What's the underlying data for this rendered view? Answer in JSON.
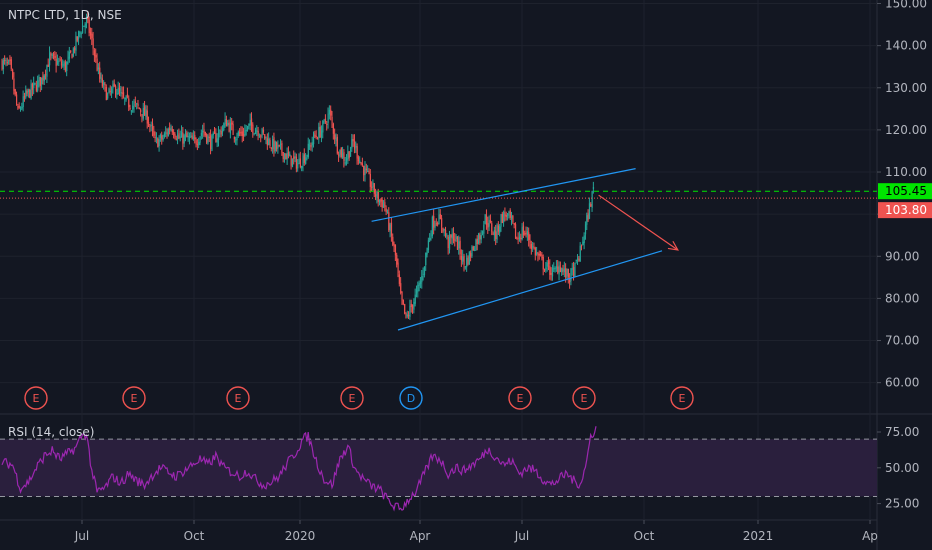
{
  "header": {
    "title": "NTPC LTD, 1D, NSE"
  },
  "colors": {
    "background": "#131722",
    "up": "#26a69a",
    "down": "#ef5350",
    "grid": "#1e222d",
    "axis_text": "#b2b5be",
    "price_green_line": "#00e600",
    "price_red_line": "#ef5350",
    "trend_line": "#2196f3",
    "arrow": "#ef5350",
    "rsi": "#9c27b0",
    "rsi_band": "#2a1f3d"
  },
  "price_axis": {
    "ticks": [
      "150.00",
      "140.00",
      "130.00",
      "120.00",
      "110.00",
      "100.00",
      "90.00",
      "80.00",
      "70.00",
      "60.00"
    ]
  },
  "price_labels": [
    {
      "value": 105.45,
      "text": "105.45",
      "color": "#00e600",
      "text_color": "#000000"
    },
    {
      "value": 103.8,
      "text": "103.80",
      "color": "#ef5350",
      "text_color": "#ffffff"
    }
  ],
  "time_axis": {
    "ticks": [
      "Jul",
      "Oct",
      "2020",
      "Apr",
      "Jul",
      "Oct",
      "2021",
      "Ap"
    ]
  },
  "events": [
    {
      "label": "E",
      "kind": "earnings"
    },
    {
      "label": "E",
      "kind": "earnings"
    },
    {
      "label": "E",
      "kind": "earnings"
    },
    {
      "label": "E",
      "kind": "earnings"
    },
    {
      "label": "D",
      "kind": "dividend"
    },
    {
      "label": "E",
      "kind": "earnings"
    },
    {
      "label": "E",
      "kind": "earnings"
    },
    {
      "label": "E",
      "kind": "earnings"
    }
  ],
  "rsi": {
    "label": "RSI (14, close)",
    "ticks": [
      "75.00",
      "50.00",
      "25.00"
    ],
    "upper": 70,
    "lower": 30
  },
  "chart_data": {
    "type": "candlestick",
    "title": "NTPC LTD, 1D, NSE",
    "ylim": [
      55,
      151
    ],
    "last_price": 105.45,
    "reference_price": 103.8,
    "price_path_anchors": [
      [
        0,
        136
      ],
      [
        6,
        135
      ],
      [
        12,
        124
      ],
      [
        18,
        128
      ],
      [
        24,
        130
      ],
      [
        30,
        132
      ],
      [
        36,
        137
      ],
      [
        42,
        136
      ],
      [
        48,
        135
      ],
      [
        54,
        139
      ],
      [
        60,
        144
      ],
      [
        64,
        146
      ],
      [
        68,
        141
      ],
      [
        74,
        132
      ],
      [
        80,
        128
      ],
      [
        86,
        130
      ],
      [
        92,
        127
      ],
      [
        98,
        126
      ],
      [
        104,
        125
      ],
      [
        110,
        123
      ],
      [
        116,
        117
      ],
      [
        122,
        118
      ],
      [
        128,
        121
      ],
      [
        134,
        118
      ],
      [
        140,
        118
      ],
      [
        146,
        117
      ],
      [
        152,
        120
      ],
      [
        158,
        117
      ],
      [
        164,
        119
      ],
      [
        170,
        122
      ],
      [
        176,
        119
      ],
      [
        182,
        119
      ],
      [
        188,
        121
      ],
      [
        194,
        120
      ],
      [
        200,
        118
      ],
      [
        206,
        116
      ],
      [
        212,
        115
      ],
      [
        218,
        113
      ],
      [
        224,
        112
      ],
      [
        230,
        114
      ],
      [
        236,
        118
      ],
      [
        242,
        120
      ],
      [
        248,
        124
      ],
      [
        254,
        116
      ],
      [
        260,
        113
      ],
      [
        266,
        117
      ],
      [
        272,
        112
      ],
      [
        278,
        108
      ],
      [
        284,
        104
      ],
      [
        290,
        102
      ],
      [
        294,
        96
      ],
      [
        298,
        90
      ],
      [
        302,
        80
      ],
      [
        306,
        75
      ],
      [
        310,
        78
      ],
      [
        314,
        81
      ],
      [
        318,
        85
      ],
      [
        322,
        92
      ],
      [
        326,
        98
      ],
      [
        330,
        99
      ],
      [
        334,
        97
      ],
      [
        338,
        93
      ],
      [
        342,
        95
      ],
      [
        346,
        92
      ],
      [
        350,
        88
      ],
      [
        354,
        90
      ],
      [
        358,
        93
      ],
      [
        362,
        95
      ],
      [
        366,
        99
      ],
      [
        370,
        97
      ],
      [
        374,
        95
      ],
      [
        378,
        99
      ],
      [
        382,
        100
      ],
      [
        386,
        98
      ],
      [
        390,
        94
      ],
      [
        394,
        96
      ],
      [
        398,
        95
      ],
      [
        402,
        92
      ],
      [
        406,
        90
      ],
      [
        410,
        88
      ],
      [
        414,
        87
      ],
      [
        418,
        86
      ],
      [
        422,
        88
      ],
      [
        426,
        86
      ],
      [
        430,
        85
      ],
      [
        434,
        87
      ],
      [
        438,
        91
      ],
      [
        442,
        97
      ],
      [
        446,
        103
      ],
      [
        448,
        106
      ]
    ],
    "trend_lines": [
      {
        "name": "upper channel",
        "from": [
          280,
          98.3
        ],
        "to": [
          480,
          110.8
        ]
      },
      {
        "name": "lower channel",
        "from": [
          300,
          72.5
        ],
        "to": [
          500,
          91.3
        ]
      },
      {
        "name": "projection arrow",
        "from": [
          452,
          104.5
        ],
        "to": [
          512,
          91.5
        ]
      }
    ],
    "rsi_series_anchors": [
      [
        0,
        54
      ],
      [
        8,
        52
      ],
      [
        14,
        36
      ],
      [
        20,
        40
      ],
      [
        26,
        50
      ],
      [
        32,
        58
      ],
      [
        38,
        62
      ],
      [
        44,
        56
      ],
      [
        50,
        60
      ],
      [
        56,
        64
      ],
      [
        60,
        72
      ],
      [
        64,
        74
      ],
      [
        68,
        48
      ],
      [
        72,
        33
      ],
      [
        78,
        36
      ],
      [
        84,
        44
      ],
      [
        90,
        39
      ],
      [
        96,
        46
      ],
      [
        102,
        41
      ],
      [
        108,
        38
      ],
      [
        114,
        45
      ],
      [
        120,
        50
      ],
      [
        126,
        47
      ],
      [
        132,
        44
      ],
      [
        138,
        48
      ],
      [
        144,
        52
      ],
      [
        150,
        56
      ],
      [
        156,
        52
      ],
      [
        162,
        58
      ],
      [
        168,
        50
      ],
      [
        174,
        47
      ],
      [
        180,
        44
      ],
      [
        186,
        48
      ],
      [
        192,
        42
      ],
      [
        198,
        38
      ],
      [
        204,
        40
      ],
      [
        210,
        44
      ],
      [
        216,
        53
      ],
      [
        222,
        60
      ],
      [
        228,
        70
      ],
      [
        232,
        72
      ],
      [
        238,
        55
      ],
      [
        244,
        42
      ],
      [
        250,
        38
      ],
      [
        256,
        56
      ],
      [
        262,
        65
      ],
      [
        268,
        48
      ],
      [
        274,
        42
      ],
      [
        280,
        37
      ],
      [
        286,
        35
      ],
      [
        290,
        30
      ],
      [
        296,
        24
      ],
      [
        302,
        21
      ],
      [
        308,
        28
      ],
      [
        314,
        34
      ],
      [
        320,
        46
      ],
      [
        326,
        58
      ],
      [
        332,
        56
      ],
      [
        338,
        46
      ],
      [
        344,
        50
      ],
      [
        350,
        48
      ],
      [
        356,
        52
      ],
      [
        362,
        56
      ],
      [
        368,
        63
      ],
      [
        374,
        58
      ],
      [
        380,
        52
      ],
      [
        386,
        55
      ],
      [
        392,
        46
      ],
      [
        398,
        50
      ],
      [
        404,
        48
      ],
      [
        410,
        42
      ],
      [
        416,
        38
      ],
      [
        422,
        42
      ],
      [
        428,
        46
      ],
      [
        434,
        40
      ],
      [
        438,
        39
      ],
      [
        442,
        50
      ],
      [
        446,
        72
      ],
      [
        450,
        78
      ]
    ],
    "rsi_ylim": [
      18,
      80
    ]
  }
}
